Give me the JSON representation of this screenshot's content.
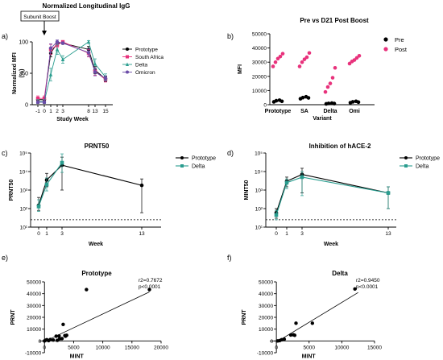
{
  "panel_labels": [
    "a)",
    "b)",
    "c)",
    "d)",
    "e)",
    "f)"
  ],
  "colors": {
    "Prototype": "#000000",
    "South Africa": "#e8327c",
    "Delta": "#2a9d8f",
    "Omicron": "#6b4ca8",
    "Pre": "#000000",
    "Post": "#e8327c"
  },
  "chart_data": [
    {
      "type": "line",
      "title": "Normalized Longitudinal IgG",
      "annotation": "Subunit Boost",
      "xlabel": "Study Week",
      "ylabel": "Normalized MFI (%)",
      "xticks": [
        -1,
        0,
        1,
        2,
        3,
        8,
        13,
        15
      ],
      "yticks": [
        0,
        50,
        100
      ],
      "ylim": [
        0,
        100
      ],
      "legend": "right",
      "series": [
        {
          "name": "Prototype",
          "x": [
            -1,
            0,
            1,
            2,
            3,
            8,
            13,
            15
          ],
          "values": [
            8,
            8,
            82,
            98,
            98,
            88,
            55,
            41
          ],
          "err": [
            3,
            3,
            6,
            3,
            2,
            5,
            6,
            4
          ]
        },
        {
          "name": "South Africa",
          "x": [
            -1,
            0,
            1,
            2,
            3,
            8,
            13,
            15
          ],
          "values": [
            10,
            10,
            88,
            95,
            100,
            82,
            53,
            40
          ],
          "err": [
            4,
            4,
            8,
            4,
            2,
            6,
            6,
            4
          ]
        },
        {
          "name": "Delta",
          "x": [
            -1,
            0,
            1,
            2,
            3,
            8,
            13,
            15
          ],
          "values": [
            5,
            5,
            48,
            88,
            72,
            100,
            65,
            44
          ],
          "err": [
            3,
            3,
            10,
            8,
            6,
            2,
            8,
            5
          ]
        },
        {
          "name": "Omicron",
          "x": [
            -1,
            0,
            1,
            2,
            3,
            8,
            13,
            15
          ],
          "values": [
            4,
            4,
            90,
            100,
            98,
            83,
            52,
            42
          ],
          "err": [
            2,
            2,
            7,
            3,
            2,
            6,
            6,
            4
          ]
        }
      ]
    },
    {
      "type": "scatter",
      "title": "Pre vs D21 Post Boost",
      "xlabel": "Variant",
      "ylabel": "MFI",
      "categories": [
        "Prototype",
        "SA",
        "Delta",
        "Omi"
      ],
      "yticks": [
        0,
        10000,
        20000,
        30000,
        40000,
        50000
      ],
      "ylim": [
        0,
        50000
      ],
      "legend": "right",
      "series": [
        {
          "name": "Pre",
          "values": [
            [
              2000,
              2800,
              3200,
              2400
            ],
            [
              4200,
              5000,
              5600,
              4800
            ],
            [
              600,
              900,
              1100,
              800
            ],
            [
              1400,
              2000,
              2400,
              1800
            ]
          ]
        },
        {
          "name": "Post",
          "values": [
            [
              27000,
              30000,
              32500,
              34000,
              36000
            ],
            [
              27000,
              30000,
              32000,
              33500,
              36500
            ],
            [
              9000,
              12500,
              15000,
              19000,
              26000
            ],
            [
              29000,
              30500,
              31500,
              33000,
              34500
            ]
          ]
        }
      ]
    },
    {
      "type": "line",
      "title": "PRNT50",
      "xlabel": "Week",
      "ylabel": "PRNT50",
      "log_y": true,
      "xticks": [
        0,
        1,
        3,
        13
      ],
      "yticks": [
        "10¹",
        "10²",
        "10³",
        "10⁴",
        "10⁵"
      ],
      "ylim": [
        10,
        100000
      ],
      "reference_line": 25,
      "legend": "top-right",
      "series": [
        {
          "name": "Prototype",
          "x": [
            0,
            1,
            3,
            13
          ],
          "values": [
            150,
            3500,
            22000,
            1800
          ],
          "err_lo": [
            80,
            1500,
            1000,
            60
          ],
          "err_hi": [
            400,
            8000,
            60000,
            4000
          ]
        },
        {
          "name": "Delta",
          "x": [
            0,
            1,
            3
          ],
          "values": [
            130,
            2000,
            30000
          ],
          "err_lo": [
            70,
            900,
            9000
          ],
          "err_hi": [
            300,
            4500,
            90000
          ]
        }
      ]
    },
    {
      "type": "line",
      "title": "Inhibition of hACE-2",
      "xlabel": "Week",
      "ylabel": "MINT50",
      "log_y": true,
      "xticks": [
        0,
        1,
        3,
        13
      ],
      "yticks": [
        "10¹",
        "10²",
        "10³",
        "10⁴",
        "10⁵"
      ],
      "ylim": [
        10,
        100000
      ],
      "reference_line": 25,
      "legend": "top-right",
      "series": [
        {
          "name": "Prototype",
          "x": [
            0,
            1,
            3,
            13
          ],
          "values": [
            60,
            3000,
            7000,
            700
          ],
          "err_lo": [
            30,
            1500,
            700,
            100
          ],
          "err_hi": [
            100,
            5000,
            15000,
            1500
          ]
        },
        {
          "name": "Delta",
          "x": [
            0,
            1,
            3,
            13
          ],
          "values": [
            45,
            2500,
            5000,
            700
          ],
          "err_lo": [
            25,
            1200,
            500,
            100
          ],
          "err_hi": [
            80,
            4000,
            10000,
            1500
          ]
        }
      ]
    },
    {
      "type": "scatter",
      "title": "Prototype",
      "xlabel": "MINT",
      "ylabel": "PRNT",
      "xticks": [
        0,
        5000,
        10000,
        15000,
        20000
      ],
      "yticks": [
        -10000,
        0,
        10000,
        20000,
        30000,
        40000,
        50000
      ],
      "xlim": [
        -1000,
        20000
      ],
      "ylim": [
        -10000,
        50000
      ],
      "stats": [
        "r2=0.7672",
        "p<0.0001"
      ],
      "fit": {
        "x": [
          0,
          18000
        ],
        "y": [
          -500,
          41500
        ]
      },
      "points": {
        "x": [
          0,
          200,
          400,
          700,
          1000,
          1500,
          2000,
          2200,
          2500,
          2600,
          3000,
          3200,
          3500,
          3600,
          3800,
          7200,
          18000
        ],
        "y": [
          0,
          600,
          1000,
          300,
          1200,
          800,
          4000,
          500,
          4200,
          1800,
          2000,
          14000,
          4500,
          4000,
          4800,
          43500,
          43500
        ]
      }
    },
    {
      "type": "scatter",
      "title": "Delta",
      "xlabel": "MINT",
      "ylabel": "PRNT",
      "xticks": [
        0,
        5000,
        10000,
        15000
      ],
      "yticks": [
        -10000,
        0,
        10000,
        20000,
        30000,
        40000,
        50000
      ],
      "xlim": [
        -1000,
        15000
      ],
      "ylim": [
        -10000,
        50000
      ],
      "stats": [
        "r2=0.9450",
        "p<0.0001"
      ],
      "fit": {
        "x": [
          0,
          12500
        ],
        "y": [
          -1000,
          41000
        ]
      },
      "points": {
        "x": [
          200,
          500,
          800,
          1200,
          2200,
          2600,
          2800,
          3000,
          5500,
          12000
        ],
        "y": [
          0,
          300,
          1000,
          1500,
          5000,
          5200,
          4800,
          15000,
          15000,
          44000
        ]
      }
    }
  ]
}
